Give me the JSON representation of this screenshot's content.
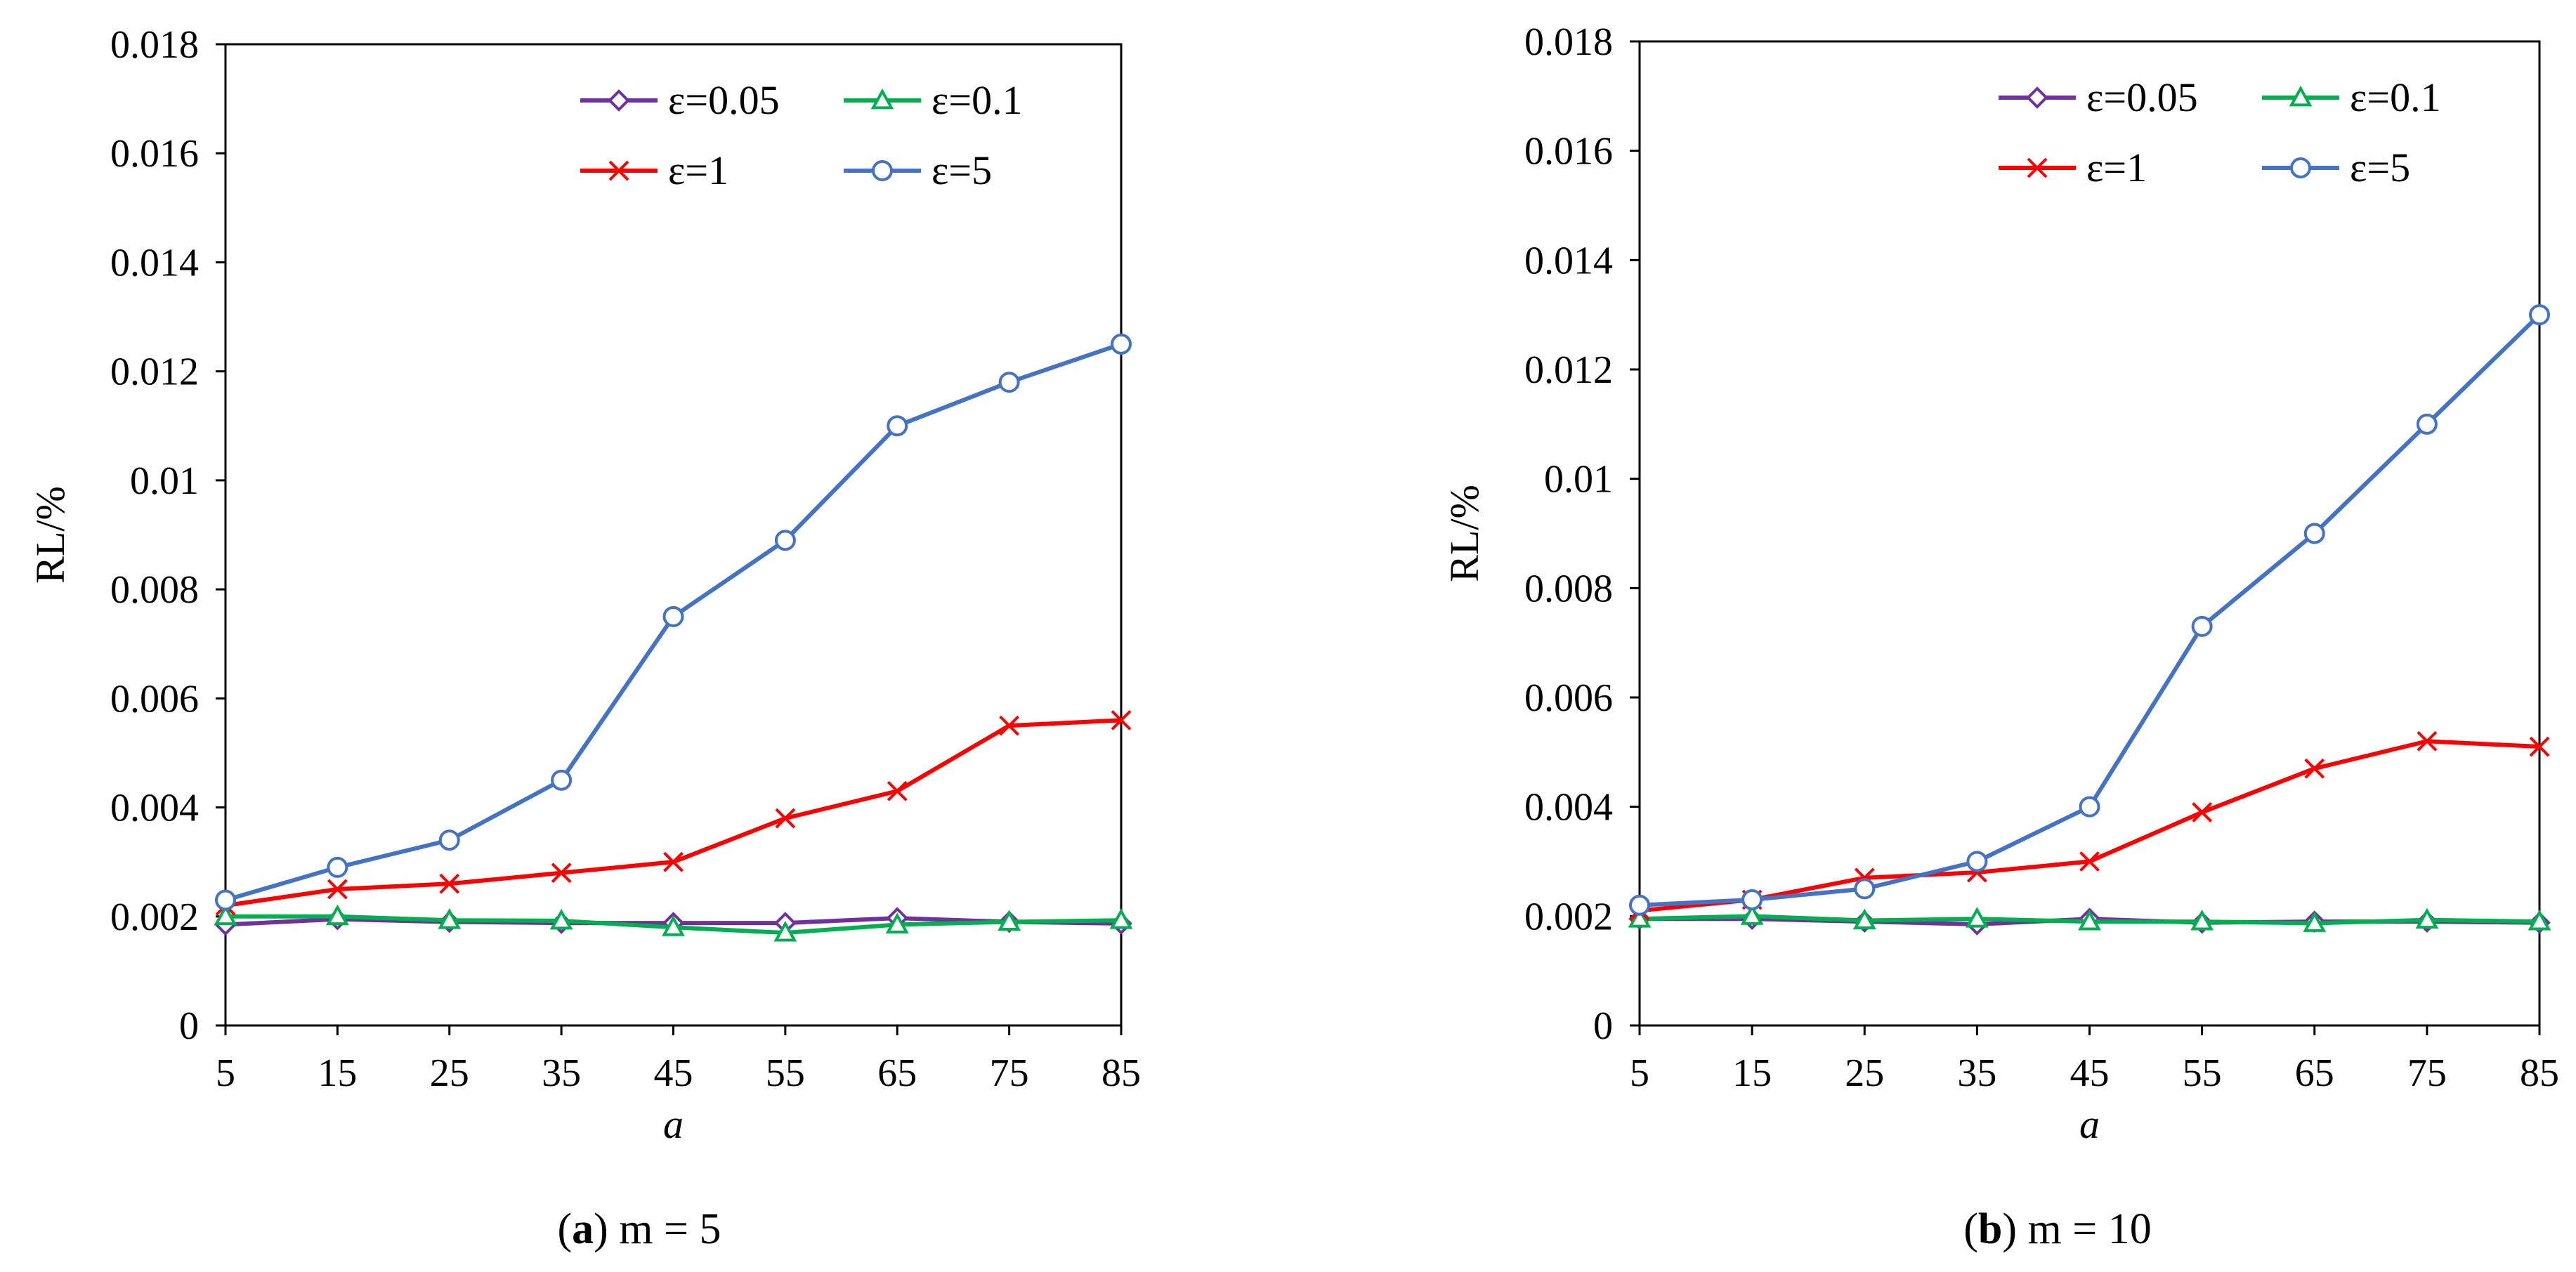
{
  "chart_data": [
    {
      "type": "line",
      "caption_letter": "a",
      "caption_rest": ") m = 5",
      "caption_open": "(",
      "xlabel": "a",
      "ylabel": "RL/%",
      "x": [
        5,
        15,
        25,
        35,
        45,
        55,
        65,
        75,
        85
      ],
      "x_tick_labels": [
        "5",
        "15",
        "25",
        "35",
        "45",
        "55",
        "65",
        "75",
        "85"
      ],
      "ylim": [
        0,
        0.018
      ],
      "y_ticks": [
        0,
        0.002,
        0.004,
        0.006,
        0.008,
        0.01,
        0.012,
        0.014,
        0.016,
        0.018
      ],
      "y_tick_labels": [
        "0",
        "0.002",
        "0.004",
        "0.006",
        "0.008",
        "0.01",
        "0.012",
        "0.014",
        "0.016",
        "0.018"
      ],
      "legend_position": "top-right",
      "series": [
        {
          "name": "ε=0.05",
          "color": "#7030a0",
          "marker": "diamond",
          "values": [
            0.00185,
            0.00195,
            0.0019,
            0.00188,
            0.00188,
            0.00188,
            0.00197,
            0.0019,
            0.00187
          ]
        },
        {
          "name": "ε=0.1",
          "color": "#00b050",
          "marker": "triangle",
          "values": [
            0.002,
            0.002,
            0.00193,
            0.00192,
            0.0018,
            0.0017,
            0.00185,
            0.0019,
            0.00193
          ]
        },
        {
          "name": "ε=1",
          "color": "#ff0000",
          "marker": "x",
          "values": [
            0.0022,
            0.0025,
            0.0026,
            0.0028,
            0.003,
            0.0038,
            0.0043,
            0.0055,
            0.0056
          ]
        },
        {
          "name": "ε=5",
          "color": "#4472c4",
          "marker": "circle",
          "values": [
            0.0023,
            0.0029,
            0.0034,
            0.0045,
            0.0075,
            0.0089,
            0.011,
            0.0118,
            0.0125
          ]
        }
      ]
    },
    {
      "type": "line",
      "caption_letter": "b",
      "caption_rest": ") m = 10",
      "caption_open": "(",
      "xlabel": "a",
      "ylabel": "RL/%",
      "x": [
        5,
        15,
        25,
        35,
        45,
        55,
        65,
        75,
        85
      ],
      "x_tick_labels": [
        "5",
        "15",
        "25",
        "35",
        "45",
        "55",
        "65",
        "75",
        "85"
      ],
      "ylim": [
        0,
        0.018
      ],
      "y_ticks": [
        0,
        0.002,
        0.004,
        0.006,
        0.008,
        0.01,
        0.012,
        0.014,
        0.016,
        0.018
      ],
      "y_tick_labels": [
        "0",
        "0.002",
        "0.004",
        "0.006",
        "0.008",
        "0.01",
        "0.012",
        "0.014",
        "0.016",
        "0.018"
      ],
      "legend_position": "top-right",
      "series": [
        {
          "name": "ε=0.05",
          "color": "#7030a0",
          "marker": "diamond",
          "values": [
            0.00195,
            0.00195,
            0.0019,
            0.00185,
            0.00195,
            0.00188,
            0.0019,
            0.0019,
            0.00188
          ]
        },
        {
          "name": "ε=0.1",
          "color": "#00b050",
          "marker": "triangle",
          "values": [
            0.00195,
            0.002,
            0.00192,
            0.00195,
            0.0019,
            0.0019,
            0.00187,
            0.00193,
            0.0019
          ]
        },
        {
          "name": "ε=1",
          "color": "#ff0000",
          "marker": "x",
          "values": [
            0.0021,
            0.0023,
            0.0027,
            0.0028,
            0.003,
            0.0039,
            0.0047,
            0.0052,
            0.0051
          ]
        },
        {
          "name": "ε=5",
          "color": "#4472c4",
          "marker": "circle",
          "values": [
            0.0022,
            0.0023,
            0.0025,
            0.003,
            0.004,
            0.0073,
            0.009,
            0.011,
            0.013
          ]
        }
      ]
    }
  ]
}
